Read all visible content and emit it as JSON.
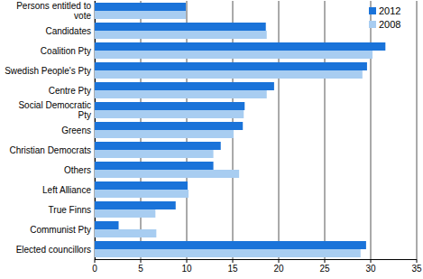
{
  "chart_data": {
    "type": "bar",
    "orientation": "horizontal",
    "categories": [
      "Persons entitled to vote",
      "Candidates",
      "Coalition Pty",
      "Swedish People's Pty",
      "Centre Pty",
      "Social Democratic Pty",
      "Greens",
      "Christian Democrats",
      "Others",
      "Left Alliance",
      "True Finns",
      "Communist Pty",
      "Elected councillors"
    ],
    "series": [
      {
        "name": "2012",
        "color": "#1a73d9",
        "values": [
          9.9,
          18.6,
          31.6,
          29.6,
          19.5,
          16.3,
          16.1,
          13.7,
          12.9,
          10.1,
          8.8,
          2.6,
          29.5
        ]
      },
      {
        "name": "2008",
        "color": "#a8cdf1",
        "values": [
          9.9,
          18.7,
          30.2,
          29.1,
          18.7,
          16.2,
          15.1,
          12.9,
          15.7,
          10.2,
          6.6,
          6.7,
          28.9
        ]
      }
    ],
    "xlim": [
      0,
      35
    ],
    "xticks": [
      0,
      5,
      10,
      15,
      20,
      25,
      30,
      35
    ],
    "grid": true,
    "legend": "top-right"
  }
}
